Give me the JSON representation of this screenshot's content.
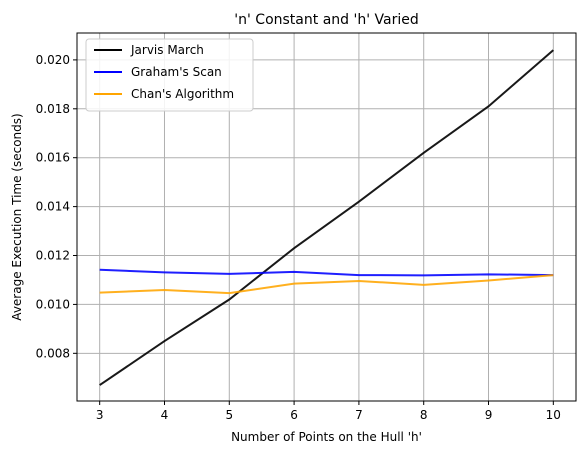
{
  "chart_data": {
    "type": "line",
    "title": "'n' Constant and 'h' Varied",
    "xlabel": "Number of Points on the Hull 'h'",
    "ylabel": "Average Execution Time (seconds)",
    "x": [
      3,
      4,
      5,
      6,
      7,
      8,
      9,
      10
    ],
    "xlim": [
      2.65,
      10.35
    ],
    "ylim": [
      0.00605,
      0.0211
    ],
    "xticks": [
      "3",
      "4",
      "5",
      "6",
      "7",
      "8",
      "9",
      "10"
    ],
    "yticks": [
      "0.008",
      "0.010",
      "0.012",
      "0.014",
      "0.016",
      "0.018",
      "0.020"
    ],
    "grid": true,
    "legend_position": "upper-left",
    "series": [
      {
        "name": "Jarvis March",
        "color": "#000000",
        "values": [
          0.0067,
          0.0085,
          0.0102,
          0.0123,
          0.0142,
          0.0162,
          0.0181,
          0.0204
        ]
      },
      {
        "name": "Graham's Scan",
        "color": "#0000ff",
        "values": [
          0.01142,
          0.01131,
          0.01125,
          0.01133,
          0.0112,
          0.01119,
          0.01123,
          0.0112
        ]
      },
      {
        "name": "Chan's Algorithm",
        "color": "#ffa500",
        "values": [
          0.01048,
          0.01059,
          0.01046,
          0.01085,
          0.01096,
          0.0108,
          0.01098,
          0.0112
        ]
      }
    ]
  }
}
